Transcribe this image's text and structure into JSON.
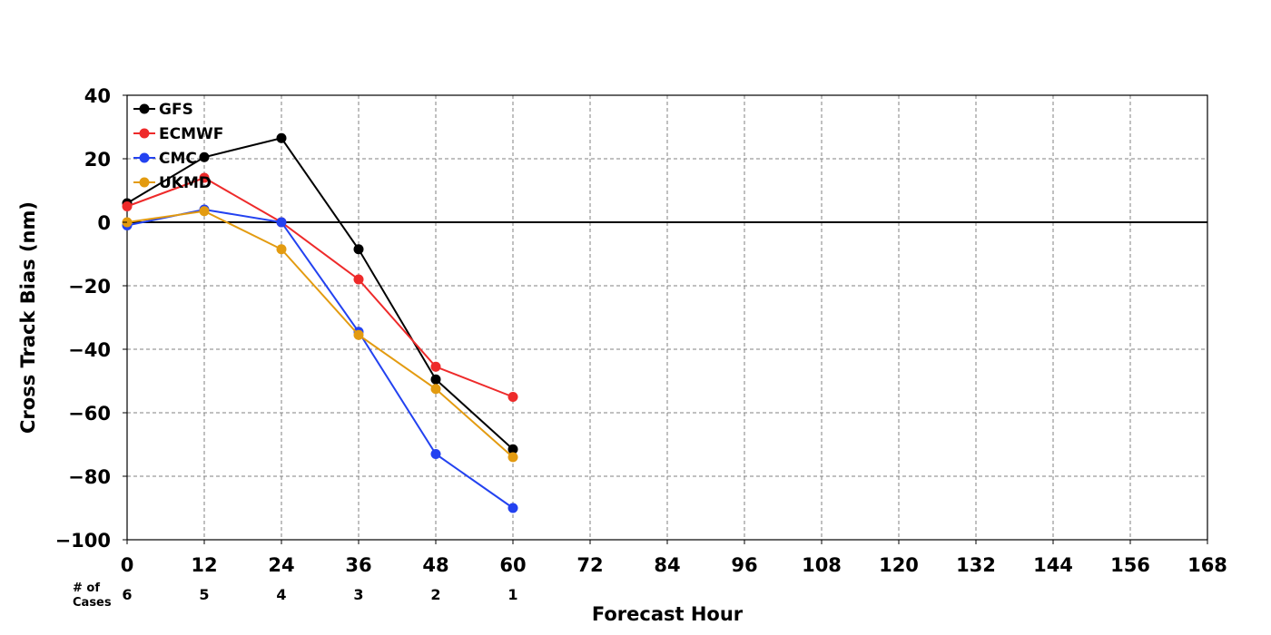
{
  "chart_data": {
    "type": "line",
    "title": "",
    "xlabel": "Forecast Hour",
    "ylabel": "Cross Track Bias (nm)",
    "xlim": [
      0,
      168
    ],
    "ylim": [
      -100,
      40
    ],
    "x_ticks": [
      0,
      12,
      24,
      36,
      48,
      60,
      72,
      84,
      96,
      108,
      120,
      132,
      144,
      156,
      168
    ],
    "x_tick_labels": [
      "0",
      "12",
      "24",
      "36",
      "48",
      "60",
      "72",
      "84",
      "96",
      "108",
      "120",
      "132",
      "144",
      "156",
      "168"
    ],
    "y_ticks": [
      -100,
      -80,
      -60,
      -40,
      -20,
      0,
      20,
      40
    ],
    "y_tick_labels": [
      "−100",
      "−80",
      "−60",
      "−40",
      "−20",
      "0",
      "20",
      "40"
    ],
    "grid": true,
    "zero_line": true,
    "legend_position": "top-left",
    "x": [
      0,
      12,
      24,
      36,
      48,
      60
    ],
    "series": [
      {
        "name": "GFS",
        "color": "#000000",
        "values": [
          6,
          20.5,
          26.5,
          -8.5,
          -49.5,
          -71.5
        ]
      },
      {
        "name": "ECMWF",
        "color": "#ee2a2a",
        "values": [
          5,
          14,
          0,
          -18,
          -45.5,
          -55
        ]
      },
      {
        "name": "CMC",
        "color": "#2342f0",
        "values": [
          -1,
          4,
          0,
          -34.5,
          -73,
          -90
        ]
      },
      {
        "name": "UKMD",
        "color": "#e39b10",
        "values": [
          0,
          3.5,
          -8.5,
          -35.5,
          -52.5,
          -74
        ]
      }
    ],
    "cases": {
      "label_line1": "# of",
      "label_line2": "Cases",
      "x": [
        0,
        12,
        24,
        36,
        48,
        60
      ],
      "values": [
        "6",
        "5",
        "4",
        "3",
        "2",
        "1"
      ]
    }
  }
}
